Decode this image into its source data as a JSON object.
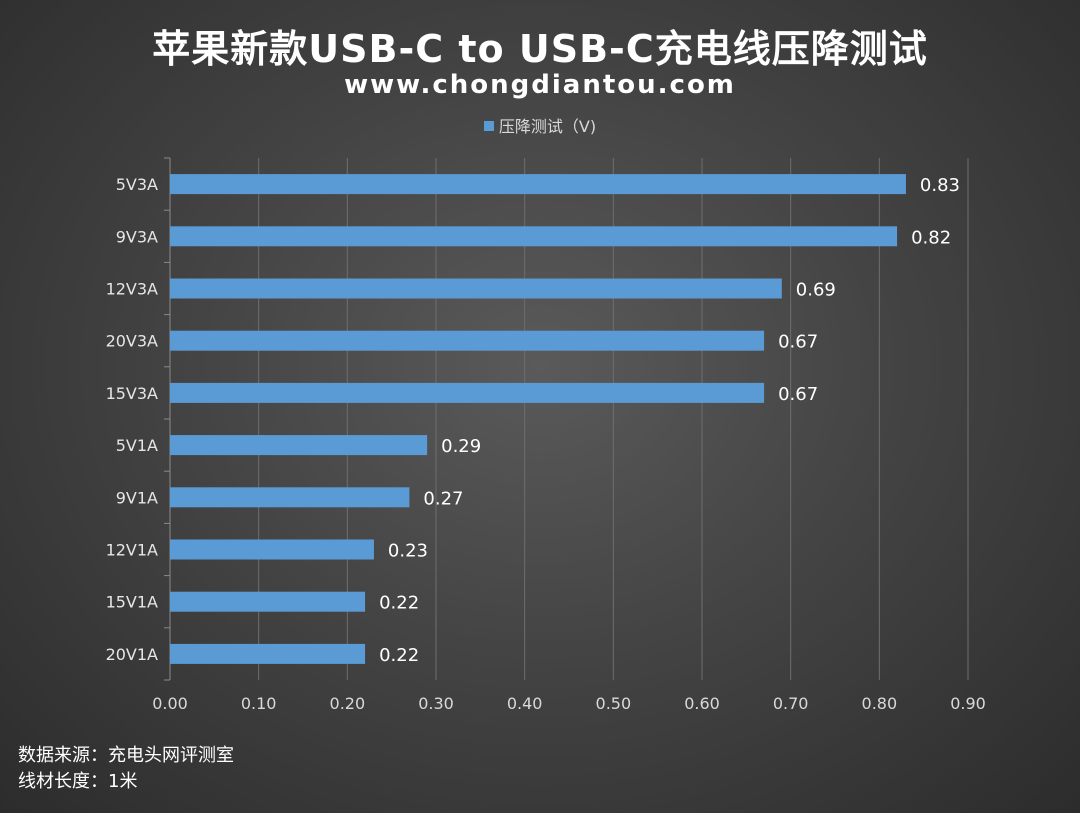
{
  "header": {
    "title": "苹果新款USB-C to USB-C充电线压降测试",
    "subtitle": "www.chongdiantou.com"
  },
  "footer": {
    "source": "数据来源：充电头网评测室",
    "cable_length": "线材长度：1米"
  },
  "colors": {
    "bar": "#5b9bd5",
    "grid": "#6e6e6e",
    "text": "#ffffff"
  },
  "chart_data": {
    "type": "bar",
    "orientation": "horizontal",
    "title": "苹果新款USB-C to USB-C充电线压降测试",
    "legend": [
      "压降测试（V)"
    ],
    "legend_position": "top",
    "categories": [
      "5V3A",
      "9V3A",
      "12V3A",
      "20V3A",
      "15V3A",
      "5V1A",
      "9V1A",
      "12V1A",
      "15V1A",
      "20V1A"
    ],
    "series": [
      {
        "name": "压降测试（V)",
        "values": [
          0.83,
          0.82,
          0.69,
          0.67,
          0.67,
          0.29,
          0.27,
          0.23,
          0.22,
          0.22
        ]
      }
    ],
    "value_labels": [
      "0.83",
      "0.82",
      "0.69",
      "0.67",
      "0.67",
      "0.29",
      "0.27",
      "0.23",
      "0.22",
      "0.22"
    ],
    "xlim": [
      0,
      0.9
    ],
    "x_ticks": [
      "0.00",
      "0.10",
      "0.20",
      "0.30",
      "0.40",
      "0.50",
      "0.60",
      "0.70",
      "0.80",
      "0.90"
    ],
    "grid": true
  }
}
